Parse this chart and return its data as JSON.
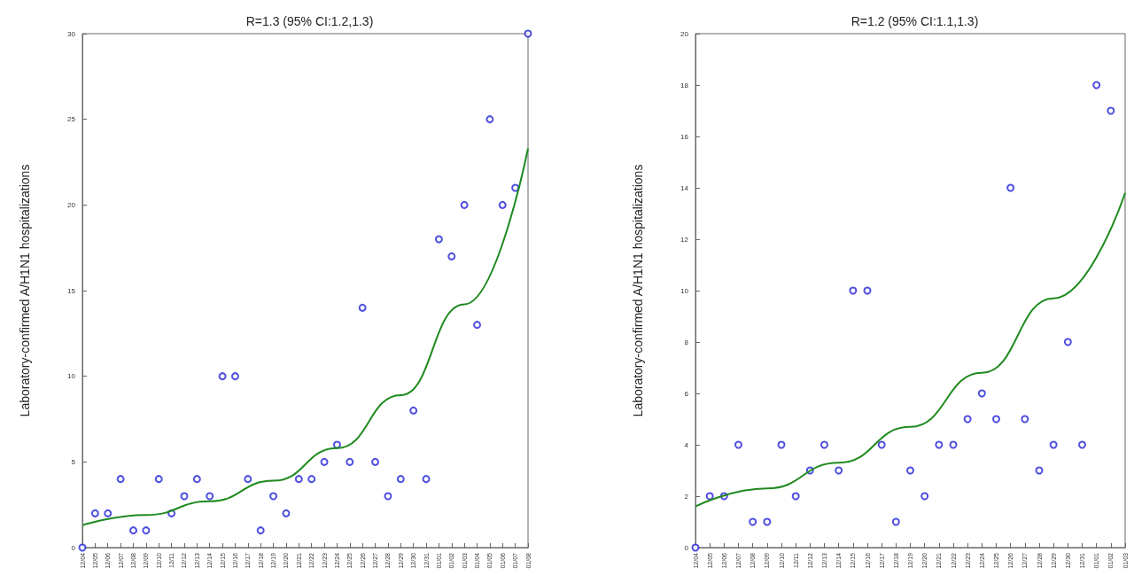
{
  "chart_data": [
    {
      "type": "scatter",
      "title": "R=1.3 (95% CI:1.2,1.3)",
      "ylabel": "Laboratory-confirmed A/H1N1 hospitalizations",
      "categories": [
        "12/04",
        "12/05",
        "12/06",
        "12/07",
        "12/08",
        "12/09",
        "12/10",
        "12/11",
        "12/12",
        "12/13",
        "12/14",
        "12/15",
        "12/16",
        "12/17",
        "12/18",
        "12/19",
        "12/20",
        "12/21",
        "12/22",
        "12/23",
        "12/24",
        "12/25",
        "12/26",
        "12/27",
        "12/28",
        "12/29",
        "12/30",
        "12/31",
        "01/01",
        "01/02",
        "01/03",
        "01/04",
        "01/05",
        "01/06",
        "01/07",
        "01/08"
      ],
      "series": [
        {
          "color": "#2323d8",
          "values": [
            0,
            2,
            2,
            4,
            1,
            1,
            4,
            2,
            3,
            4,
            3,
            10,
            10,
            4,
            1,
            3,
            2,
            4,
            4,
            5,
            6,
            5,
            14,
            5,
            3,
            4,
            8,
            4,
            18,
            17,
            20,
            13,
            25,
            20,
            21,
            30
          ]
        },
        {
          "type": "line",
          "color": "#1f8a1f",
          "marker": "none",
          "x": [
            "12/04",
            "12/09",
            "12/14",
            "12/19",
            "12/24",
            "12/29",
            "01/03",
            "01/08"
          ],
          "values": [
            1.3,
            1.9,
            2.7,
            3.9,
            5.8,
            8.9,
            14.2,
            23.3
          ]
        }
      ],
      "ylim": [
        0,
        30
      ],
      "yticks": [
        0,
        5,
        10,
        15,
        20,
        25,
        30
      ],
      "marker": "circle",
      "grid": false
    },
    {
      "type": "scatter",
      "title": "R=1.2 (95% CI:1.1,1.3)",
      "ylabel": "Laboratory-confirmed A/H1N1 hospitalizations",
      "categories": [
        "12/04",
        "12/05",
        "12/06",
        "12/07",
        "12/08",
        "12/09",
        "12/10",
        "12/11",
        "12/12",
        "12/13",
        "12/14",
        "12/15",
        "12/16",
        "12/17",
        "12/18",
        "12/19",
        "12/20",
        "12/21",
        "12/22",
        "12/23",
        "12/24",
        "12/25",
        "12/26",
        "12/27",
        "12/28",
        "12/29",
        "12/30",
        "12/31",
        "01/01",
        "01/02",
        "01/03"
      ],
      "series": [
        {
          "color": "#2323d8",
          "values": [
            0,
            2,
            2,
            4,
            1,
            1,
            4,
            2,
            3,
            4,
            3,
            10,
            10,
            4,
            1,
            3,
            2,
            4,
            4,
            5,
            6,
            5,
            14,
            5,
            3,
            4,
            8,
            4,
            18,
            17,
            null
          ]
        },
        {
          "type": "line",
          "color": "#1f8a1f",
          "marker": "none",
          "x": [
            "12/04",
            "12/09",
            "12/14",
            "12/19",
            "12/24",
            "12/29",
            "01/03"
          ],
          "values": [
            1.6,
            2.3,
            3.3,
            4.7,
            6.8,
            9.7,
            13.8
          ]
        }
      ],
      "ylim": [
        0,
        20
      ],
      "yticks": [
        0,
        2,
        4,
        6,
        8,
        10,
        12,
        14,
        16,
        18,
        20
      ],
      "marker": "circle",
      "grid": false
    }
  ]
}
